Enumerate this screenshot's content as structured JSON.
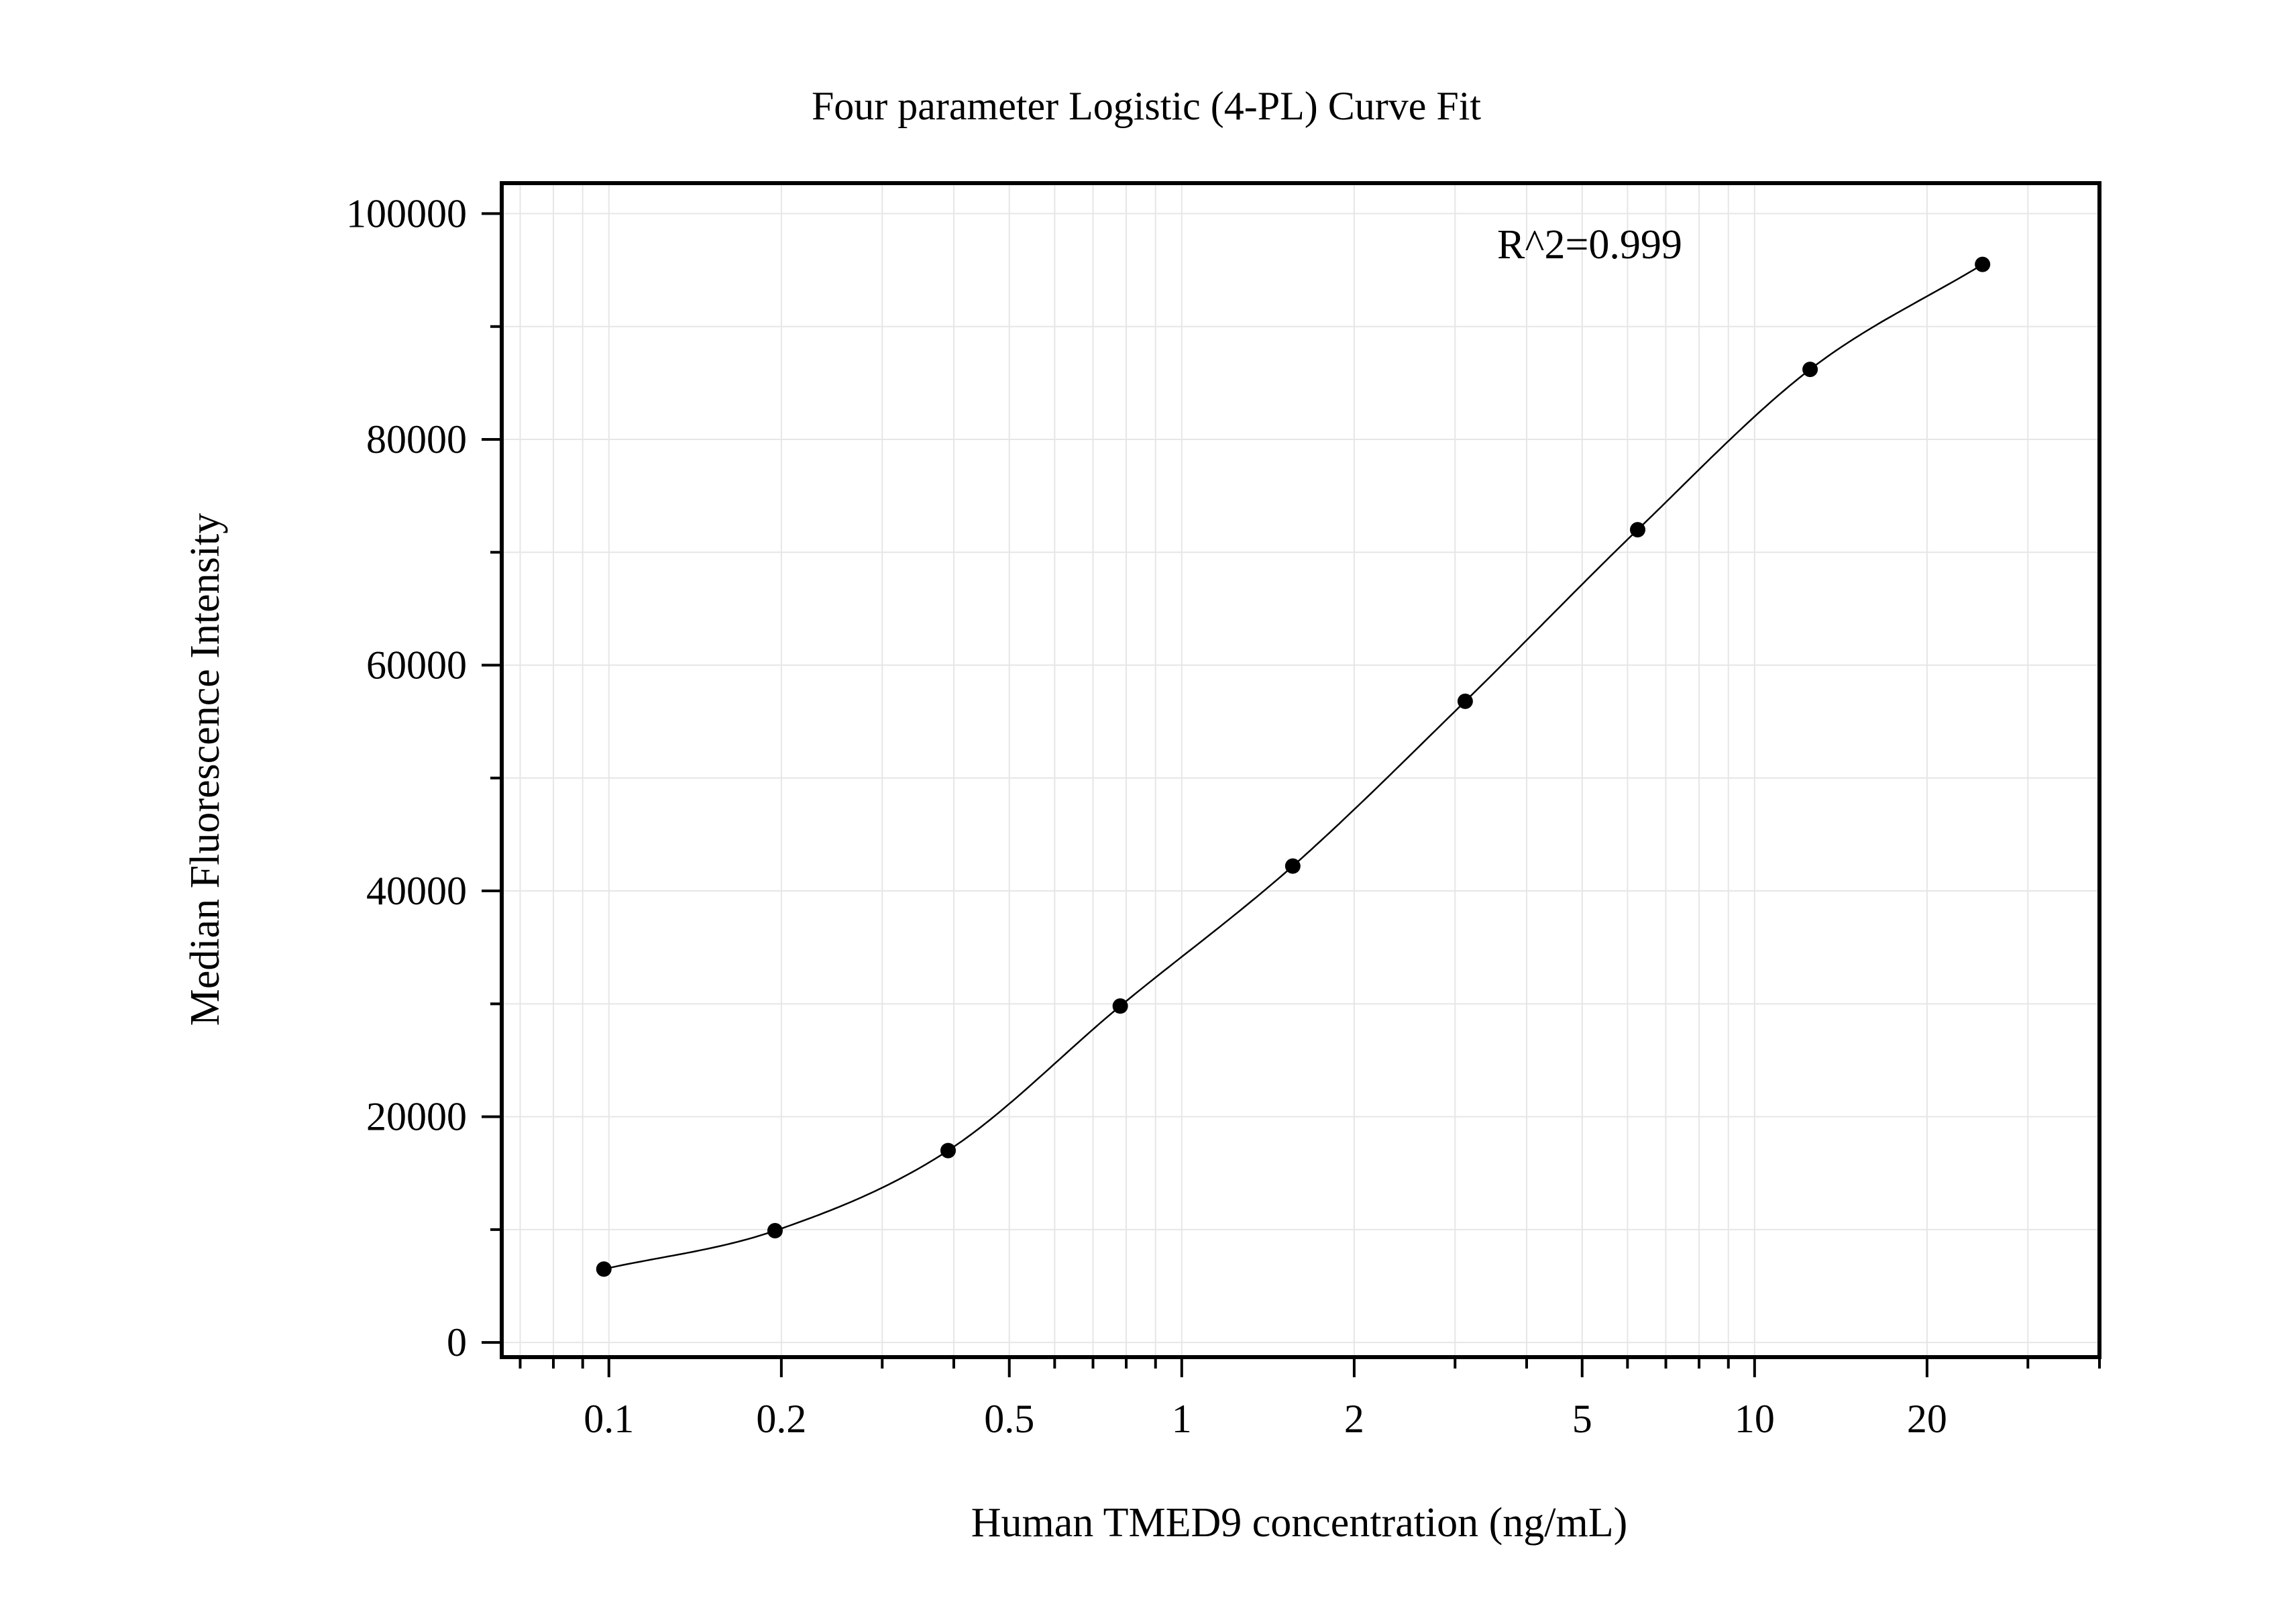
{
  "chart_data": {
    "type": "scatter",
    "title": "Four parameter Logistic (4-PL) Curve Fit",
    "xlabel": "Human TMED9 concentration (ng/mL)",
    "ylabel": "Median Fluorescence Intensity",
    "x_scale": "log",
    "xlim": [
      0.065,
      40
    ],
    "ylim": [
      -1300,
      102700
    ],
    "x_ticks": [
      0.1,
      0.2,
      0.5,
      1,
      2,
      5,
      10,
      20
    ],
    "x_tick_labels": [
      "0.1",
      "0.2",
      "0.5",
      "1",
      "2",
      "5",
      "10",
      "20"
    ],
    "y_ticks": [
      0,
      20000,
      40000,
      60000,
      80000,
      100000
    ],
    "y_tick_labels": [
      "0",
      "20000",
      "40000",
      "60000",
      "80000",
      "100000"
    ],
    "grid": true,
    "annotation": "R^2=0.999",
    "series": [
      {
        "marker": "circle",
        "color": "#000000",
        "x": [
          0.098,
          0.195,
          0.391,
          0.781,
          1.5625,
          3.125,
          6.25,
          12.5,
          25
        ],
        "y": [
          6500,
          9900,
          17000,
          29800,
          42200,
          56800,
          72000,
          86200,
          95500
        ]
      }
    ],
    "fit": {
      "model": "4-PL",
      "color": "#000000",
      "x_range": [
        0.098,
        25
      ]
    }
  }
}
